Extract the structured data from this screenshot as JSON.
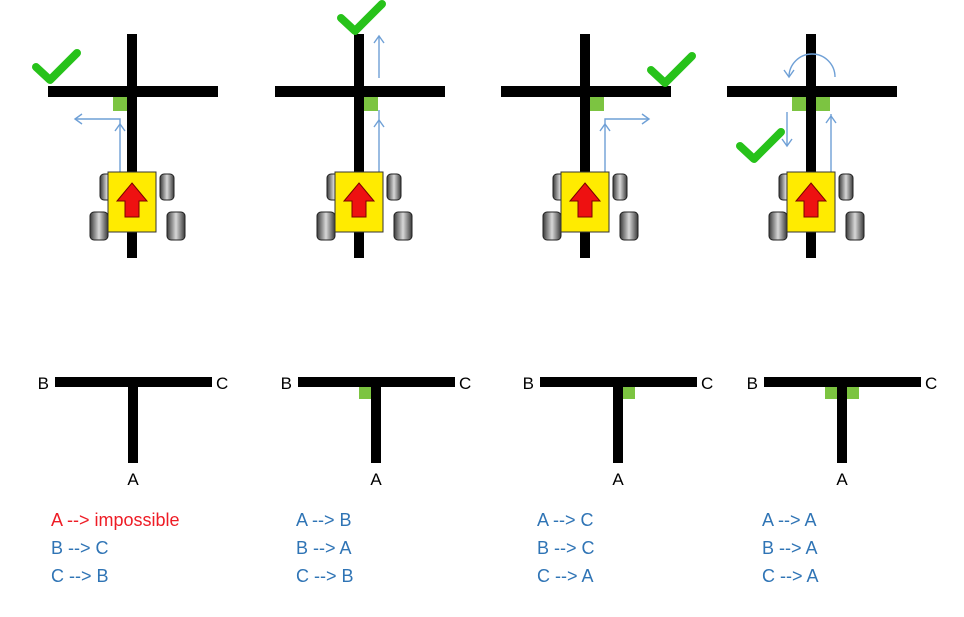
{
  "colors": {
    "line": "#000000",
    "sensor": "#7cc441",
    "robot_body": "#ffeb00",
    "robot_arrow": "#ee1111",
    "flow_arrow": "#6fa0d6",
    "check": "#27c21a",
    "rule_ok": "#2f74b5",
    "rule_bad": "#ee1c25"
  },
  "robot_scenarios": [
    {
      "sensor": "left",
      "turn": "left",
      "checkmark": "top-left"
    },
    {
      "sensor": "right",
      "turn": "straight",
      "checkmark": "top"
    },
    {
      "sensor": "right",
      "turn": "right",
      "checkmark": "top-right"
    },
    {
      "sensor": "both",
      "turn": "u-turn",
      "checkmark": "bottom-left"
    }
  ],
  "junctions": [
    {
      "label_b": "B",
      "label_c": "C",
      "label_a": "A",
      "marker": "none",
      "rules": [
        {
          "text": "A --> impossible",
          "status": "bad"
        },
        {
          "text": "B --> C",
          "status": "ok"
        },
        {
          "text": "C --> B",
          "status": "ok"
        }
      ]
    },
    {
      "label_b": "B",
      "label_c": "C",
      "label_a": "A",
      "marker": "left",
      "rules": [
        {
          "text": "A --> B",
          "status": "ok"
        },
        {
          "text": "B --> A",
          "status": "ok"
        },
        {
          "text": "C --> B",
          "status": "ok"
        }
      ]
    },
    {
      "label_b": "B",
      "label_c": "C",
      "label_a": "A",
      "marker": "right",
      "rules": [
        {
          "text": "A --> C",
          "status": "ok"
        },
        {
          "text": "B --> C",
          "status": "ok"
        },
        {
          "text": "C --> A",
          "status": "ok"
        }
      ]
    },
    {
      "label_b": "B",
      "label_c": "C",
      "label_a": "A",
      "marker": "both",
      "rules": [
        {
          "text": "A --> A",
          "status": "ok"
        },
        {
          "text": "B --> A",
          "status": "ok"
        },
        {
          "text": "C --> A",
          "status": "ok"
        }
      ]
    }
  ]
}
